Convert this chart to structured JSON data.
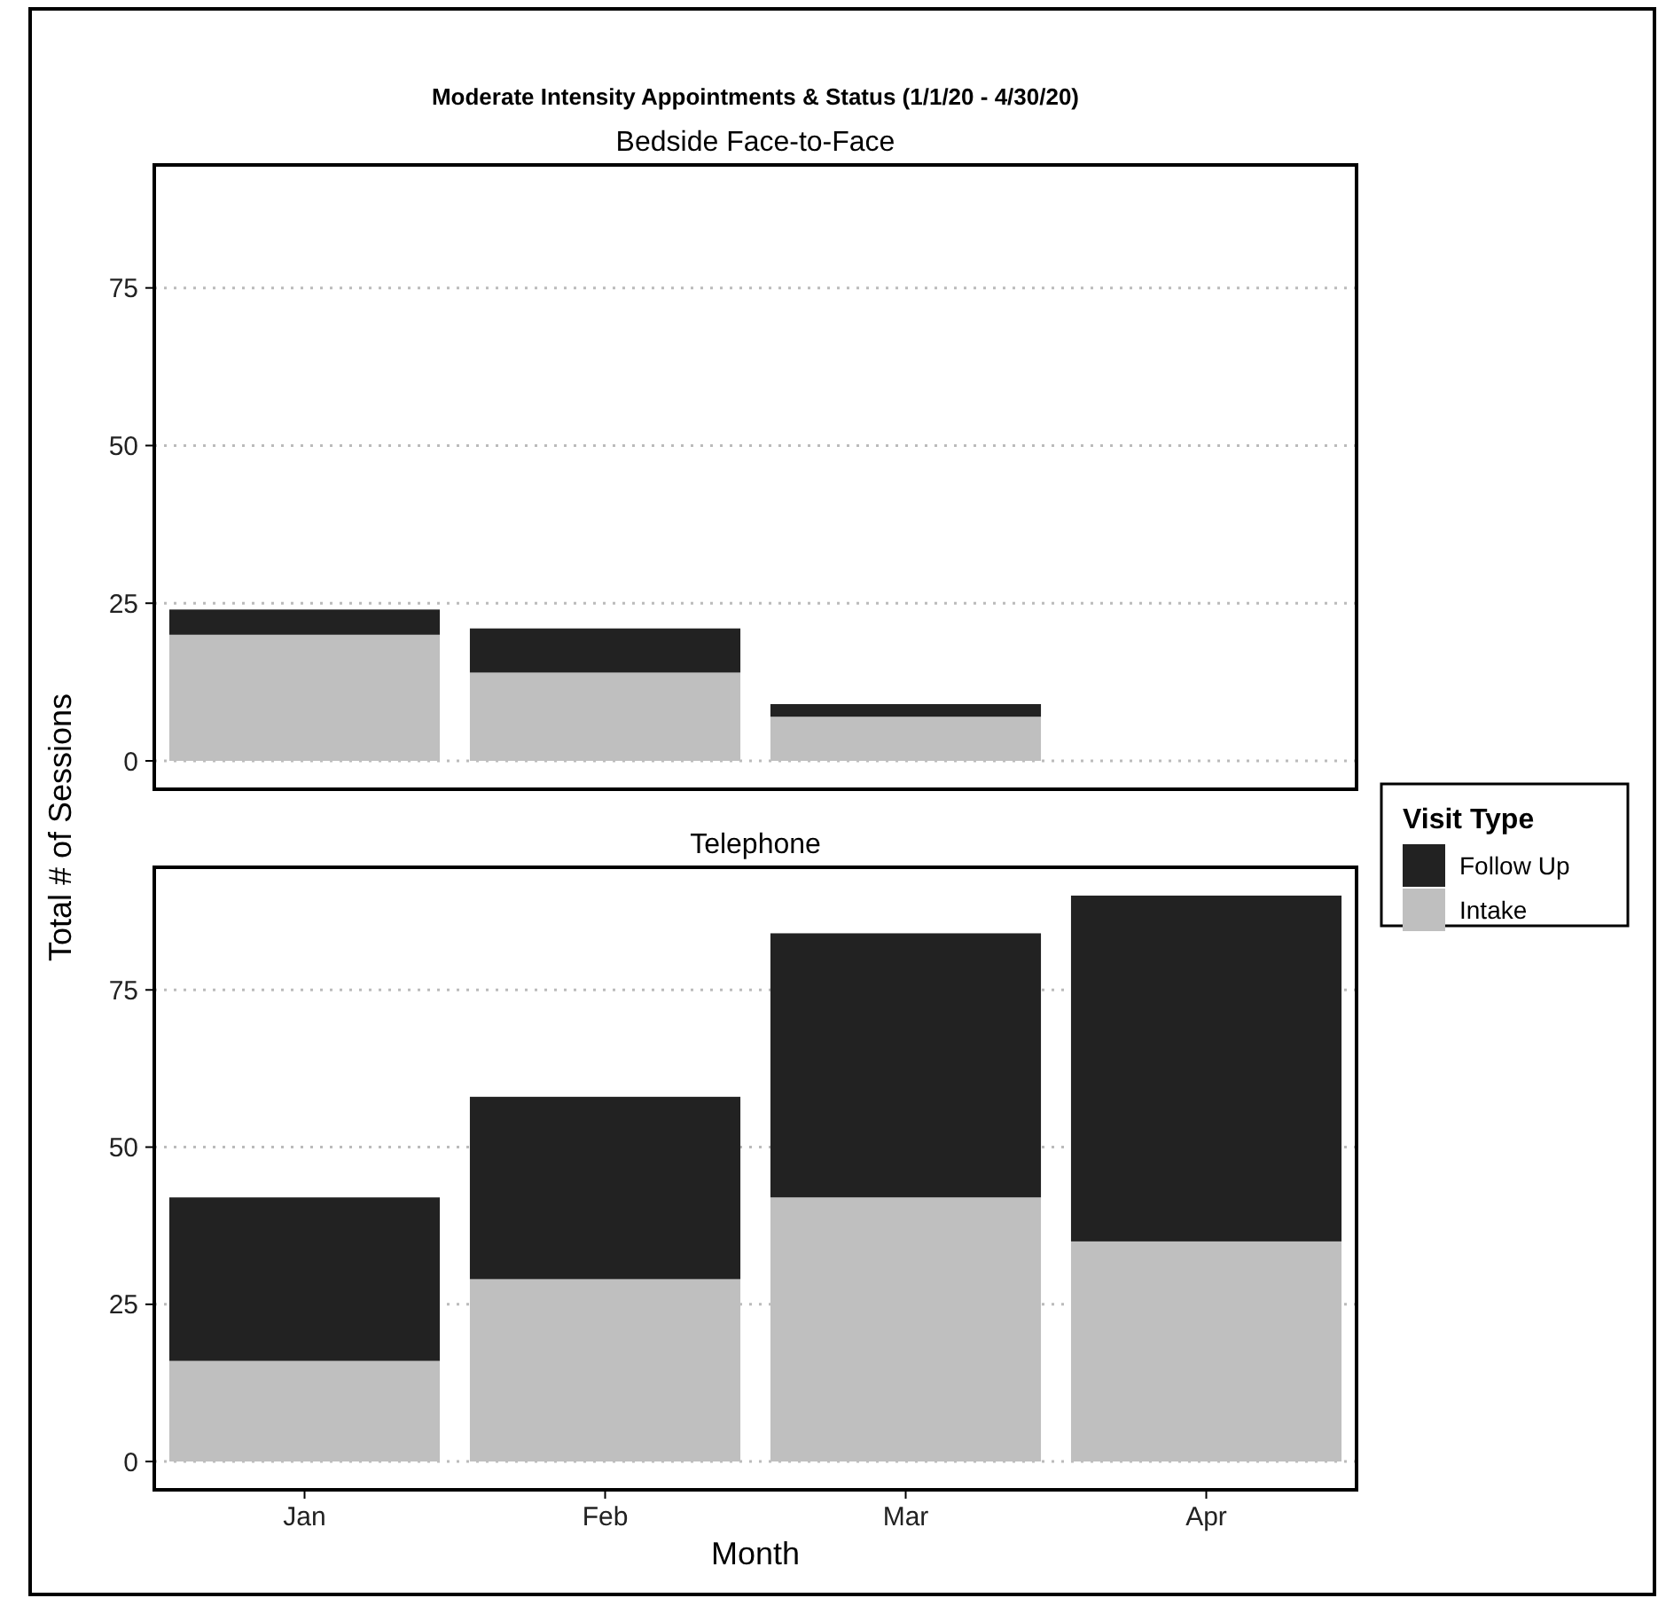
{
  "chart_data": [
    {
      "type": "bar",
      "title": "Moderate Intensity Appointments & Status (1/1/20 - 4/30/20)",
      "subtitle": "Bedside Face-to-Face",
      "ylabel": "Total # of Sessions",
      "legend_title": "Visit Type",
      "categories": [
        null,
        null,
        null,
        null
      ],
      "stacked": true,
      "series": [
        {
          "name": "Intake",
          "color": "#bfbfbf",
          "values": [
            20,
            14,
            7,
            null
          ]
        },
        {
          "name": "Follow Up",
          "color": "#222222",
          "values": [
            4,
            7,
            2,
            null
          ]
        }
      ],
      "ylim": [
        -4.5,
        94.5
      ],
      "yticks": [
        0,
        25,
        50,
        75
      ],
      "grid": "y",
      "legend": "right",
      "tick_labels": "y"
    },
    {
      "type": "bar",
      "subtitle": "Telephone",
      "xlabel": "Month",
      "categories": [
        "Jan",
        "Feb",
        "Mar",
        "Apr"
      ],
      "stacked": true,
      "series": [
        {
          "color": "#bfbfbf",
          "values": [
            16,
            29,
            42,
            35
          ]
        },
        {
          "color": "#222222",
          "values": [
            26,
            29,
            42,
            55
          ]
        }
      ],
      "ylim": [
        -4.5,
        94.5
      ],
      "yticks": [
        0,
        25,
        50,
        75
      ],
      "grid": "y"
    }
  ]
}
